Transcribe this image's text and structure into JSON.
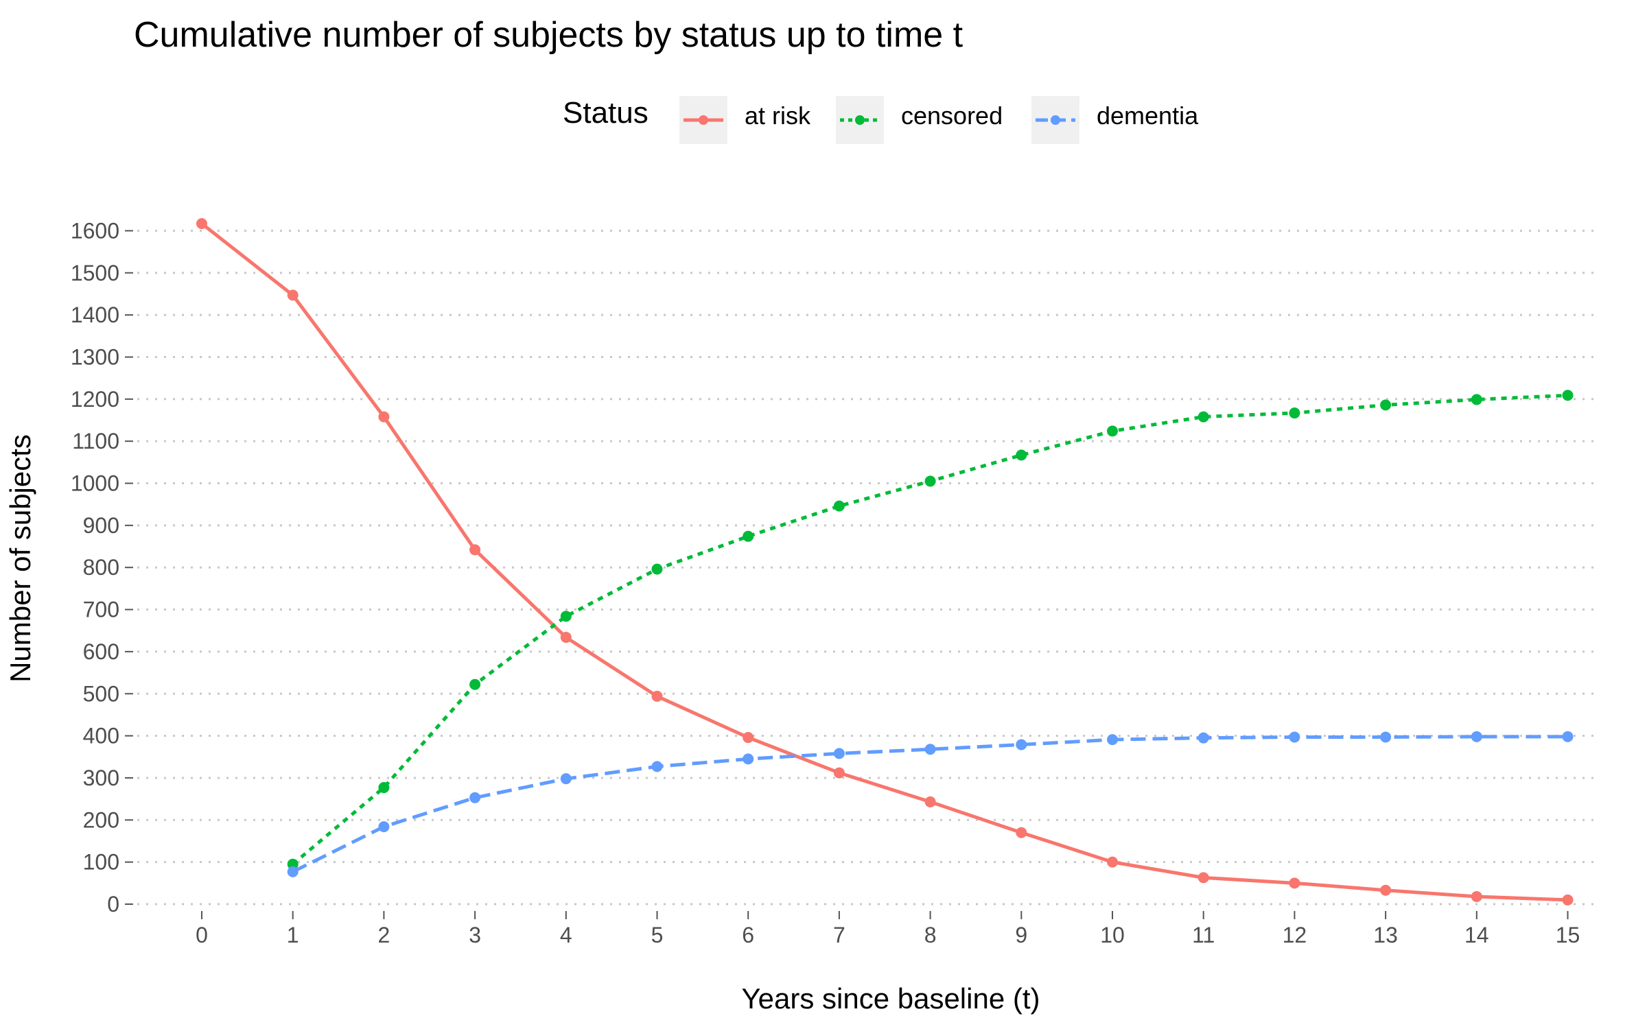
{
  "chart_data": {
    "type": "line",
    "title": "Cumulative number of subjects by status up to time t",
    "xlabel": "Years since baseline (t)",
    "ylabel": "Number of subjects",
    "xlim": [
      0,
      15
    ],
    "ylim": [
      0,
      1600
    ],
    "x_ticks": [
      "0",
      "1",
      "2",
      "3",
      "4",
      "5",
      "6",
      "7",
      "8",
      "9",
      "10",
      "11",
      "12",
      "13",
      "14",
      "15"
    ],
    "y_ticks": [
      "0",
      "100",
      "200",
      "300",
      "400",
      "500",
      "600",
      "700",
      "800",
      "900",
      "1000",
      "1100",
      "1200",
      "1300",
      "1400",
      "1500",
      "1600"
    ],
    "grid": "horizontal dotted",
    "legend": {
      "title": "Status",
      "placement": "top"
    },
    "series": [
      {
        "name": "at risk",
        "color": "#f8766d",
        "linestyle": "solid",
        "x": [
          0,
          1,
          2,
          3,
          4,
          5,
          6,
          7,
          8,
          9,
          10,
          11,
          12,
          13,
          14,
          15
        ],
        "values": [
          1617,
          1447,
          1158,
          842,
          634,
          494,
          396,
          312,
          243,
          170,
          100,
          63,
          50,
          33,
          18,
          10
        ]
      },
      {
        "name": "censored",
        "color": "#00ba38",
        "linestyle": "dotted",
        "x": [
          1,
          2,
          3,
          4,
          5,
          6,
          7,
          8,
          9,
          10,
          11,
          12,
          13,
          14,
          15
        ],
        "values": [
          95,
          277,
          522,
          684,
          796,
          874,
          946,
          1005,
          1067,
          1124,
          1158,
          1167,
          1186,
          1199,
          1209
        ]
      },
      {
        "name": "dementia",
        "color": "#619cff",
        "linestyle": "dashed",
        "x": [
          1,
          2,
          3,
          4,
          5,
          6,
          7,
          8,
          9,
          10,
          11,
          12,
          13,
          14,
          15
        ],
        "values": [
          77,
          184,
          253,
          298,
          327,
          345,
          358,
          368,
          379,
          391,
          395,
          397,
          397,
          398,
          398
        ]
      }
    ]
  }
}
